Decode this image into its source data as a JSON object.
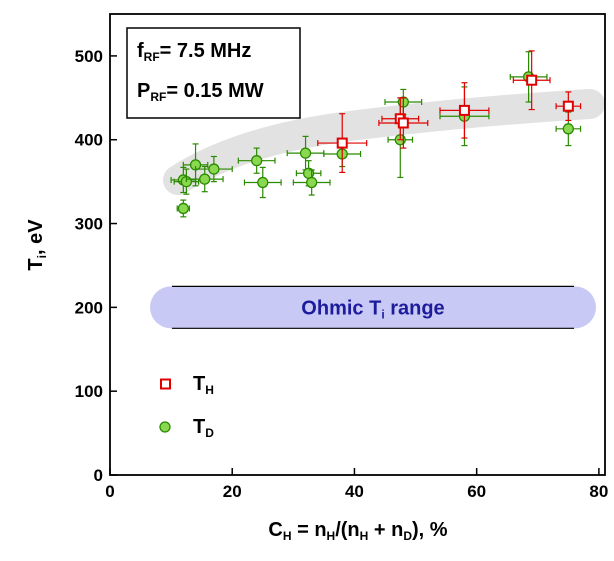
{
  "chart_data": {
    "type": "scatter",
    "xlabel": [
      "C",
      "H",
      " = n",
      "H",
      "/(n",
      "H",
      " + n",
      "D",
      "), %"
    ],
    "ylabel": [
      "T",
      "i",
      ", eV"
    ],
    "xlim": [
      0,
      81
    ],
    "ylim": [
      0,
      550
    ],
    "xticks": [
      0,
      20,
      40,
      60,
      80
    ],
    "yticks": [
      0,
      100,
      200,
      300,
      400,
      500
    ],
    "info": [
      [
        "f",
        "RF",
        "= 7.5 MHz"
      ],
      [
        "P",
        "RF",
        "= 0.15 MW"
      ]
    ],
    "ohmic": {
      "label": [
        "Ohmic T",
        "i",
        " range"
      ],
      "range": [
        175,
        225
      ]
    },
    "series": [
      {
        "name": [
          "T",
          "H"
        ],
        "marker": "square",
        "color": "#e00000",
        "fill": "#ffffff",
        "x": [
          38,
          47.5,
          48,
          58,
          69,
          75
        ],
        "values": [
          396,
          425,
          420,
          435,
          471,
          440
        ],
        "xerr": [
          4,
          3,
          4,
          4,
          3,
          2
        ],
        "yerr": [
          35,
          25,
          30,
          33,
          35,
          17
        ]
      },
      {
        "name": [
          "T",
          "D"
        ],
        "marker": "circle",
        "color": "#2a8a00",
        "fill": "#8ad84f",
        "x": [
          12,
          12,
          12.5,
          14,
          15.5,
          17,
          24,
          25,
          32,
          32.5,
          33,
          38,
          47.5,
          48,
          58,
          68.5,
          75
        ],
        "values": [
          318,
          352,
          350,
          370,
          353,
          365,
          375,
          349,
          384,
          360,
          349,
          383,
          400,
          445,
          428,
          475,
          413
        ],
        "xerr": [
          1,
          2,
          2,
          2,
          3,
          3,
          3,
          3,
          3,
          2,
          3,
          3,
          2,
          3,
          4,
          3,
          2
        ],
        "yerr": [
          10,
          15,
          15,
          25,
          15,
          15,
          15,
          18,
          20,
          15,
          15,
          15,
          45,
          15,
          35,
          30,
          20
        ]
      }
    ]
  }
}
